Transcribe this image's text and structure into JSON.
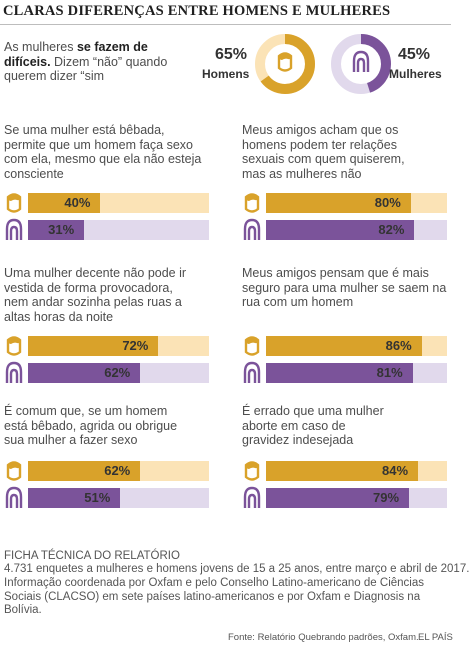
{
  "title": "CLARAS DIFERENÇAS ENTRE HOMENS E MULHERES",
  "intro": {
    "pre": "As mulheres ",
    "bold": "se fazem de difíceis.",
    "post": " Dizem “não” quando querem dizer “sim"
  },
  "colors": {
    "men": "#d9a22a",
    "men_light": "#fbe3b6",
    "women": "#7b539a",
    "women_light": "#e1d9ec"
  },
  "icons": {
    "men": "man-head-icon",
    "women": "woman-head-icon"
  },
  "chart_data": [
    {
      "type": "donut",
      "series": [
        {
          "name": "Homens",
          "value": 65
        },
        {
          "name": "Mulheres",
          "value": 45
        }
      ]
    },
    {
      "type": "bar",
      "question": "Se uma mulher está bêbada, permite que um homem faça sexo com ela, mesmo que ela não esteja consciente",
      "men": 40,
      "women": 31
    },
    {
      "type": "bar",
      "question": "Meus amigos acham que os homens podem ter relações sexuais com quem quiserem, mas as mulheres não",
      "men": 80,
      "women": 82
    },
    {
      "type": "bar",
      "question": "Uma mulher decente não pode ir vestida de forma provocadora, nem andar sozinha pelas ruas a altas horas da noite",
      "men": 72,
      "women": 62
    },
    {
      "type": "bar",
      "question": "Meus amigos pensam que é mais seguro para uma mulher se saem na rua com um homem",
      "men": 86,
      "women": 81
    },
    {
      "type": "bar",
      "question": "É comum que, se um homem está bêbado, agrida ou obrigue sua mulher a fazer sexo",
      "men": 62,
      "women": 51
    },
    {
      "type": "bar",
      "question": "É errado que uma mulher aborte em caso de gravidez indesejada",
      "men": 84,
      "women": 79
    }
  ],
  "ficha": {
    "title": "FICHA TÉCNICA DO RELATÓRIO",
    "line1": "4.731 enquetes a mulheres e homens jovens de 15 a 25 anos, entre março e abril de 2017.",
    "line2": "Informação coordenada por Oxfam e pelo Conselho Latino-americano de Ciências Sociais (CLACSO) em sete países latino-americanos e por Oxfam e Diagnosis na Bolívia."
  },
  "source": "Fonte: Relatório Quebrando padrões, Oxfam.",
  "brand": "EL PAÍS"
}
